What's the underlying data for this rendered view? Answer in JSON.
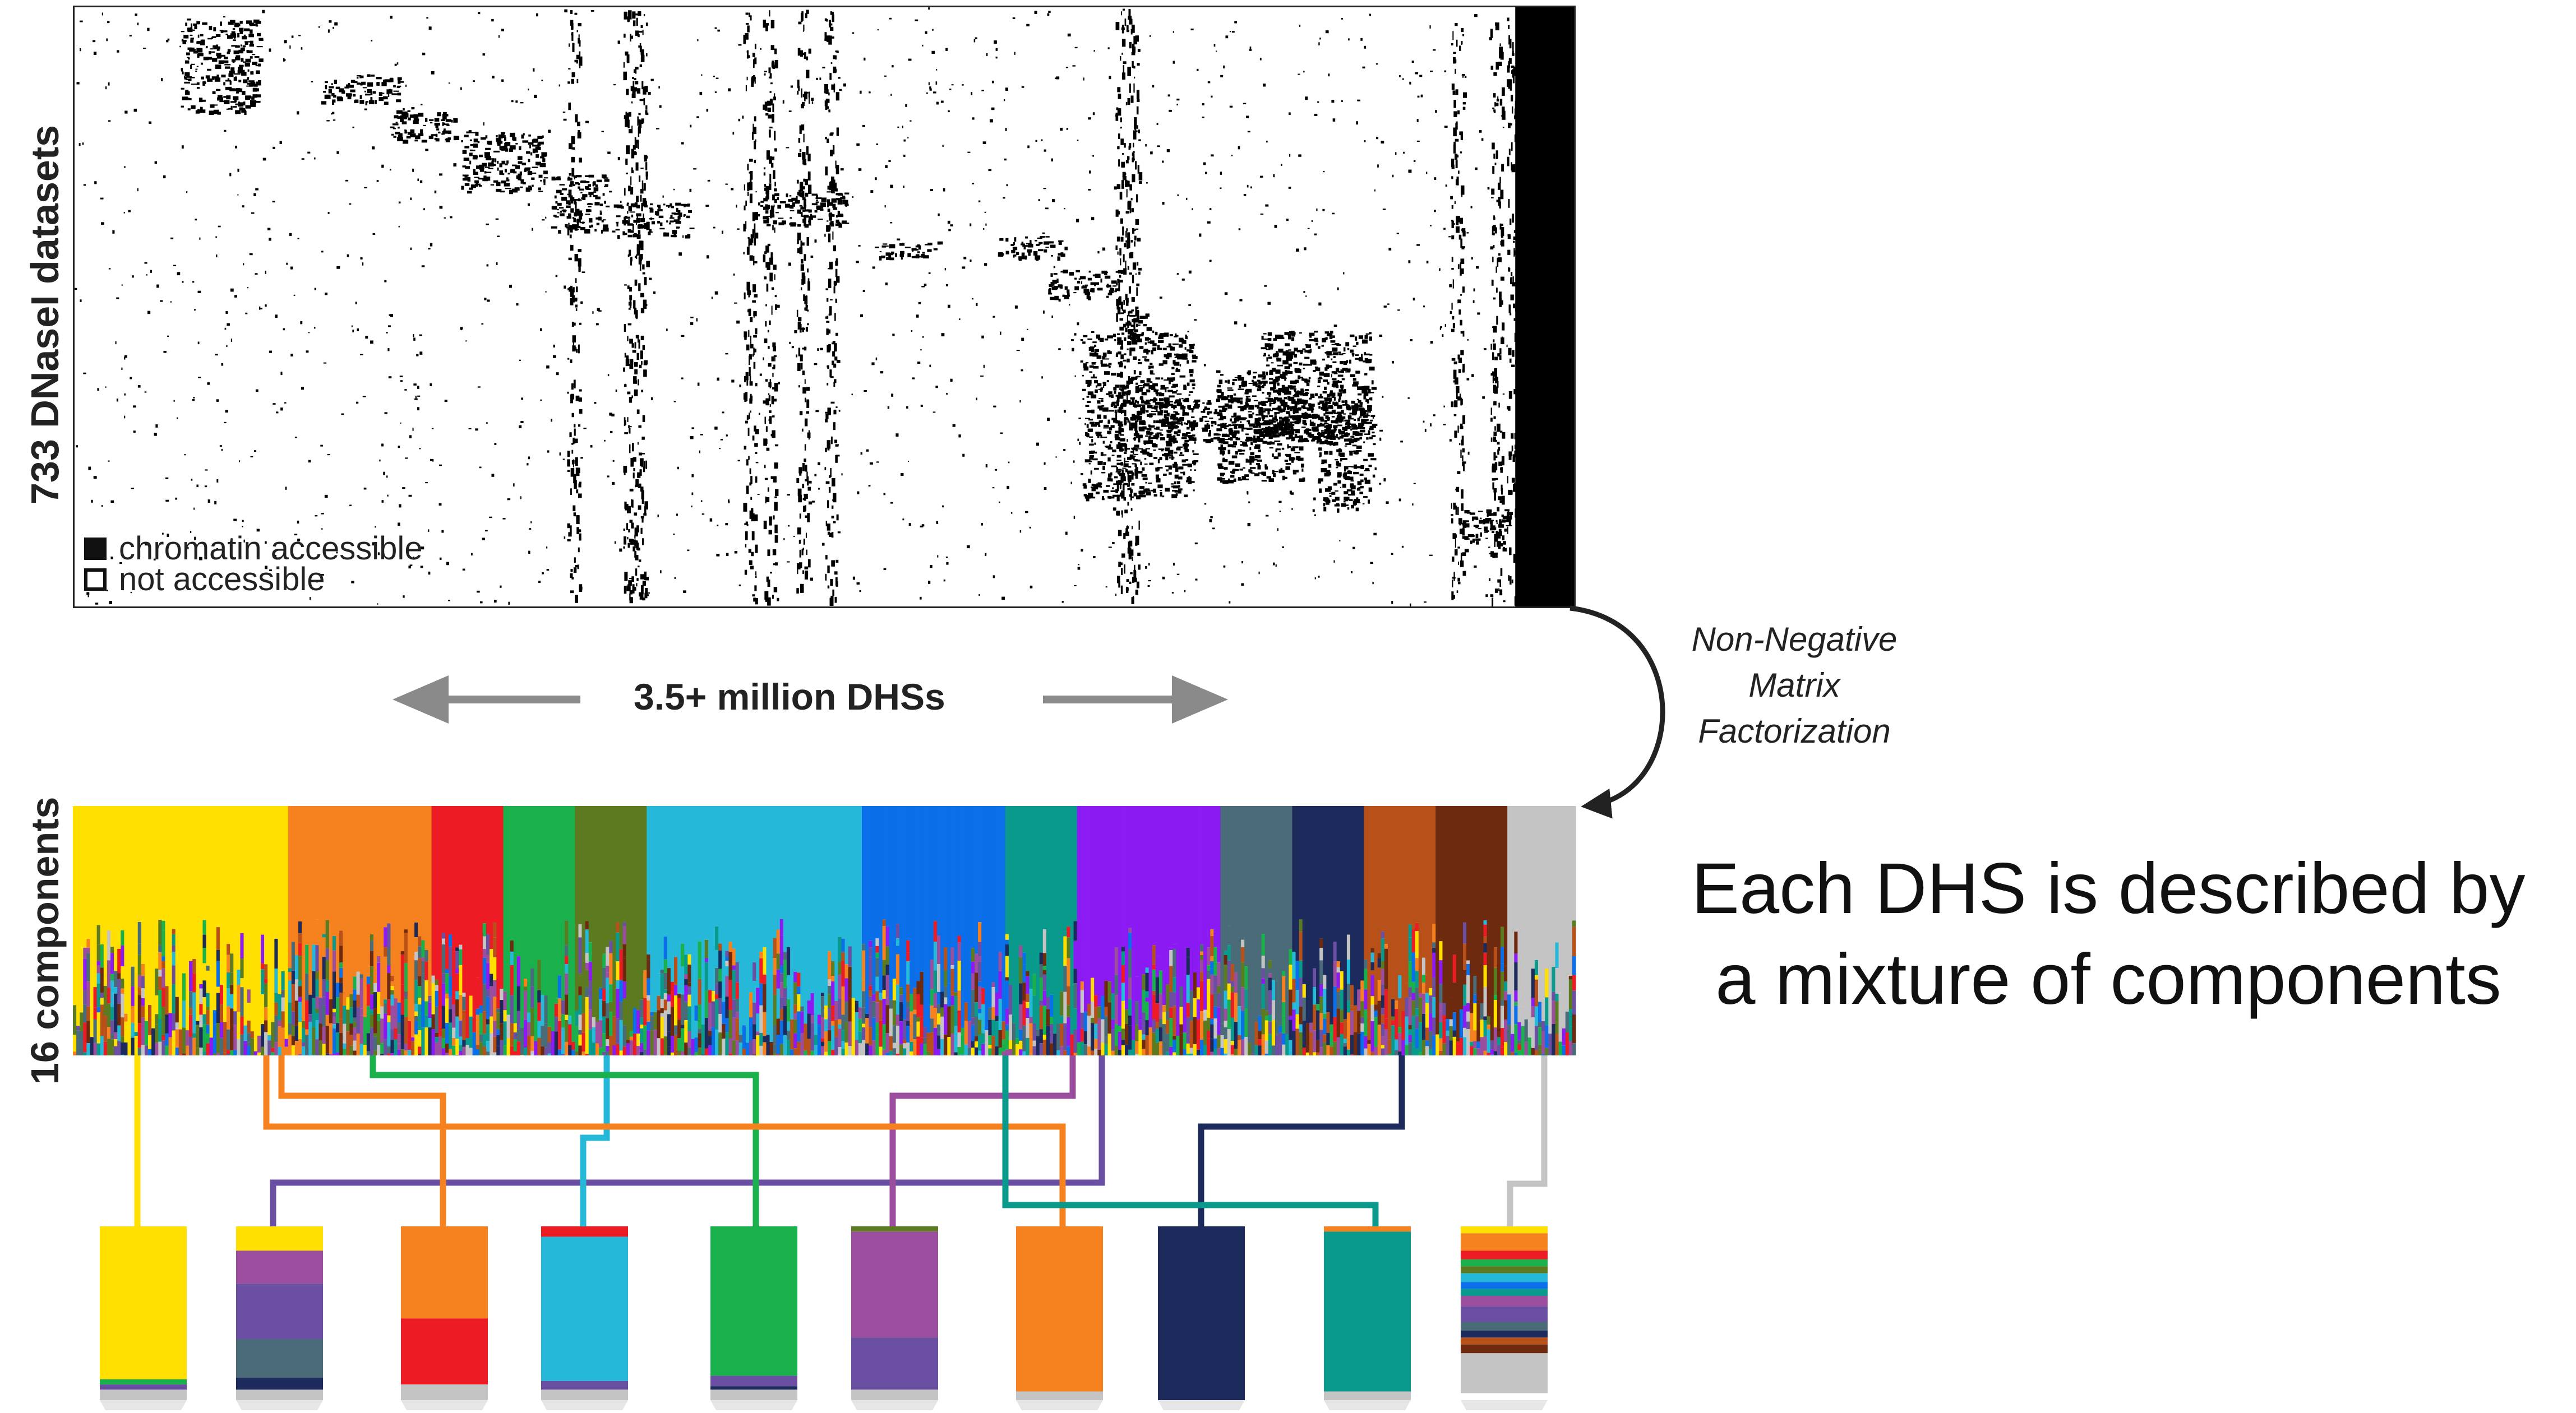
{
  "heatmap": {
    "y_label": "733 DNaseI datasets",
    "legend": {
      "accessible_label": "chromatin accessible",
      "not_accessible_label": "not accessible"
    },
    "colors": {
      "accessible": "#000000",
      "not_accessible": "#ffffff"
    }
  },
  "dhs_axis": {
    "label": "3.5+ million DHSs"
  },
  "nmf": {
    "lines": [
      "Non-Negative",
      "Matrix",
      "Factorization"
    ]
  },
  "components": {
    "y_label": "16 components",
    "palette": [
      "#ffe000",
      "#f5821f",
      "#ed1c24",
      "#1ab04b",
      "#5c7a1f",
      "#26b8d8",
      "#0a6fe8",
      "#099a8c",
      "#8b1bf2",
      "#4a6b78",
      "#1c2a5c",
      "#b8501a",
      "#6e2a0e",
      "#c4c4c4",
      "#9b4d9e",
      "#6a4fa3"
    ]
  },
  "caption": {
    "line1": "Each DHS is described by",
    "line2": "a mixture of components"
  },
  "example_bars": [
    {
      "segments": [
        [
          "#ffe000",
          0.88
        ],
        [
          "#1ab04b",
          0.03
        ],
        [
          "#6a4fa3",
          0.03
        ],
        [
          "#c4c4c4",
          0.06
        ]
      ]
    },
    {
      "segments": [
        [
          "#ffe000",
          0.14
        ],
        [
          "#9b4d9e",
          0.19
        ],
        [
          "#6a4fa3",
          0.32
        ],
        [
          "#4a6b78",
          0.22
        ],
        [
          "#1c2a5c",
          0.07
        ],
        [
          "#c4c4c4",
          0.06
        ]
      ]
    },
    {
      "segments": [
        [
          "#f5821f",
          0.53
        ],
        [
          "#ed1c24",
          0.38
        ],
        [
          "#c4c4c4",
          0.09
        ]
      ]
    },
    {
      "segments": [
        [
          "#ed1c24",
          0.06
        ],
        [
          "#26b8d8",
          0.83
        ],
        [
          "#6a4fa3",
          0.05
        ],
        [
          "#c4c4c4",
          0.06
        ]
      ]
    },
    {
      "segments": [
        [
          "#1ab04b",
          0.86
        ],
        [
          "#6a4fa3",
          0.06
        ],
        [
          "#1c2a5c",
          0.02
        ],
        [
          "#c4c4c4",
          0.06
        ]
      ]
    },
    {
      "segments": [
        [
          "#5c7a1f",
          0.03
        ],
        [
          "#9b4d9e",
          0.61
        ],
        [
          "#6a4fa3",
          0.3
        ],
        [
          "#c4c4c4",
          0.06
        ]
      ]
    },
    {
      "segments": [
        [
          "#f5821f",
          0.95
        ],
        [
          "#c4c4c4",
          0.05
        ]
      ]
    },
    {
      "segments": [
        [
          "#1c2a5c",
          1.0
        ]
      ]
    },
    {
      "segments": [
        [
          "#f5821f",
          0.03
        ],
        [
          "#099a8c",
          0.92
        ],
        [
          "#c4c4c4",
          0.05
        ]
      ]
    },
    {
      "segments": [
        [
          "#ffe000",
          0.04
        ],
        [
          "#f5821f",
          0.1
        ],
        [
          "#ed1c24",
          0.05
        ],
        [
          "#1ab04b",
          0.04
        ],
        [
          "#5c7a1f",
          0.04
        ],
        [
          "#26b8d8",
          0.05
        ],
        [
          "#0a6fe8",
          0.04
        ],
        [
          "#099a8c",
          0.04
        ],
        [
          "#9b4d9e",
          0.06
        ],
        [
          "#6a4fa3",
          0.09
        ],
        [
          "#4a6b78",
          0.05
        ],
        [
          "#1c2a5c",
          0.04
        ],
        [
          "#b8501a",
          0.04
        ],
        [
          "#6e2a0e",
          0.05
        ],
        [
          "#c4c4c4",
          0.23
        ]
      ]
    }
  ],
  "connector_colors": [
    "#ffe000",
    "#6a4fa3",
    "#f5821f",
    "#26b8d8",
    "#1ab04b",
    "#9b4d9e",
    "#f5821f",
    "#1c2a5c",
    "#099a8c",
    "#c4c4c4"
  ]
}
